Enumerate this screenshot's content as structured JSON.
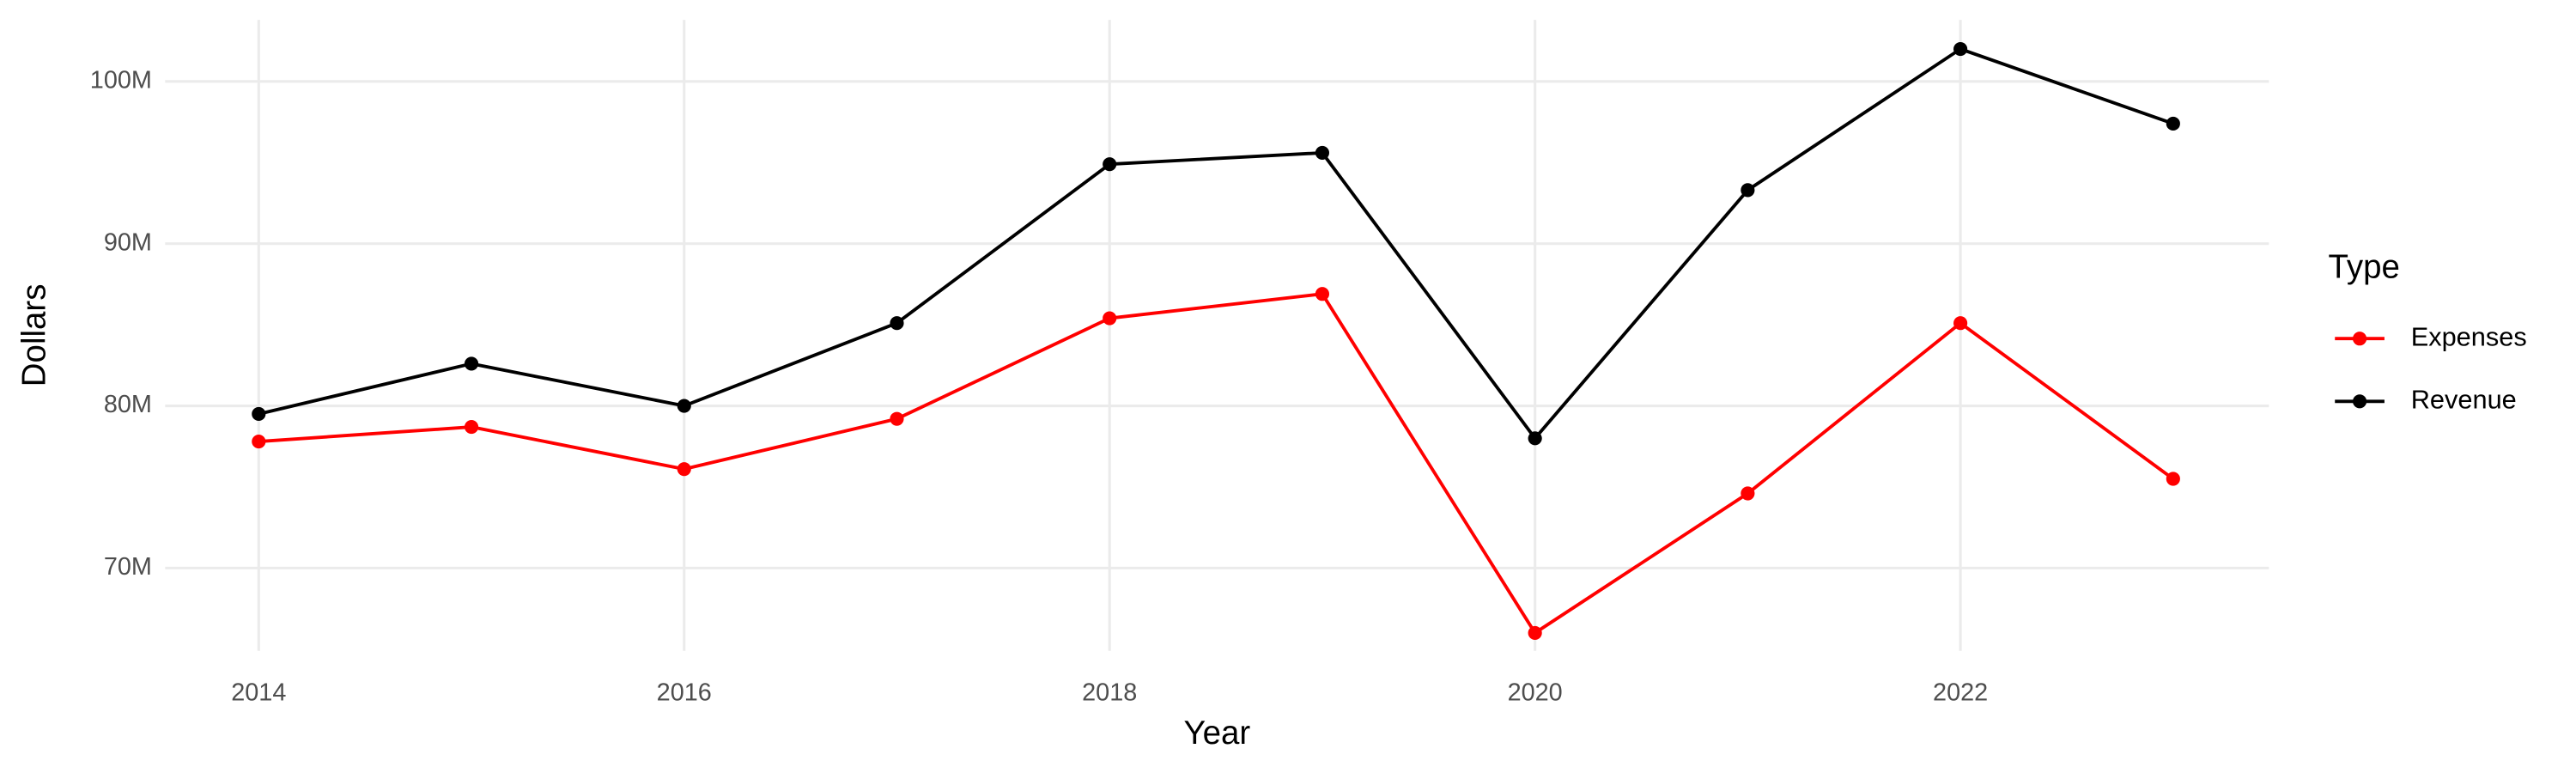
{
  "chart_data": {
    "type": "line",
    "x_label": "Year",
    "y_label": "Dollars",
    "legend_title": "Type",
    "legend_position": "right",
    "grid": true,
    "x": [
      2014,
      2015,
      2016,
      2017,
      2018,
      2019,
      2020,
      2021,
      2022,
      2023
    ],
    "series": [
      {
        "name": "Expenses",
        "color": "#ff0000",
        "values": [
          77800000,
          78700000,
          76100000,
          79200000,
          85400000,
          86900000,
          66000000,
          74600000,
          85100000,
          75500000
        ]
      },
      {
        "name": "Revenue",
        "color": "#000000",
        "values": [
          79500000,
          82600000,
          80000000,
          85100000,
          94900000,
          95600000,
          78000000,
          93300000,
          102000000,
          97400000
        ]
      }
    ],
    "xlim": [
      2013.56,
      2023.45
    ],
    "xticks": [
      2014,
      2016,
      2018,
      2020,
      2022
    ],
    "ylim": [
      64900000,
      103800000
    ],
    "yticks": [
      {
        "value": 70000000,
        "label": "70M"
      },
      {
        "value": 80000000,
        "label": "80M"
      },
      {
        "value": 90000000,
        "label": "90M"
      },
      {
        "value": 100000000,
        "label": "100M"
      }
    ]
  }
}
